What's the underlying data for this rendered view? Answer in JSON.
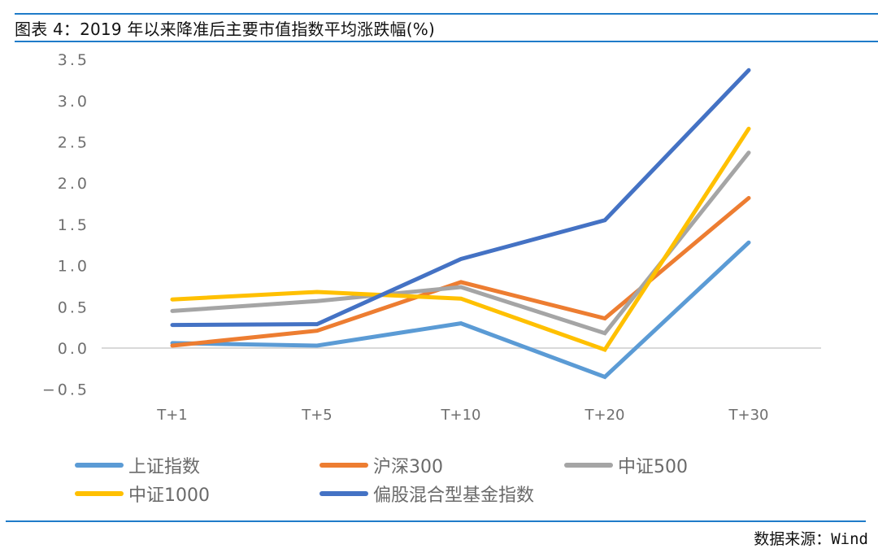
{
  "header": {
    "title": "图表 4：2019 年以来降准后主要市值指数平均涨跌幅(%)"
  },
  "footer": {
    "source": "数据来源：Wind"
  },
  "colors": {
    "rule": "#1f7bc9",
    "gridline": "#d9d9d9"
  },
  "chart_data": {
    "type": "line",
    "title": "2019 年以来降准后主要市值指数平均涨跌幅(%)",
    "xlabel": "",
    "ylabel": "",
    "categories": [
      "T+1",
      "T+5",
      "T+10",
      "T+20",
      "T+30"
    ],
    "ylim": [
      -0.5,
      3.5
    ],
    "yticks": [
      "3.5",
      "3.0",
      "2.5",
      "2.0",
      "1.5",
      "1.0",
      "0.5",
      "0.0",
      "−0.5"
    ],
    "grid": false,
    "legend_position": "bottom",
    "series": [
      {
        "name": "上证指数",
        "color": "#5b9bd5",
        "values": [
          0.06,
          0.03,
          0.3,
          -0.35,
          1.28
        ]
      },
      {
        "name": "沪深300",
        "color": "#ed7d31",
        "values": [
          0.03,
          0.21,
          0.8,
          0.36,
          1.82
        ]
      },
      {
        "name": "中证500",
        "color": "#a5a5a5",
        "values": [
          0.45,
          0.57,
          0.74,
          0.18,
          2.37
        ]
      },
      {
        "name": "中证1000",
        "color": "#ffc000",
        "values": [
          0.59,
          0.68,
          0.6,
          -0.02,
          2.66
        ]
      },
      {
        "name": "偏股混合型基金指数",
        "color": "#4472c4",
        "values": [
          0.28,
          0.29,
          1.08,
          1.55,
          3.37
        ]
      }
    ]
  }
}
